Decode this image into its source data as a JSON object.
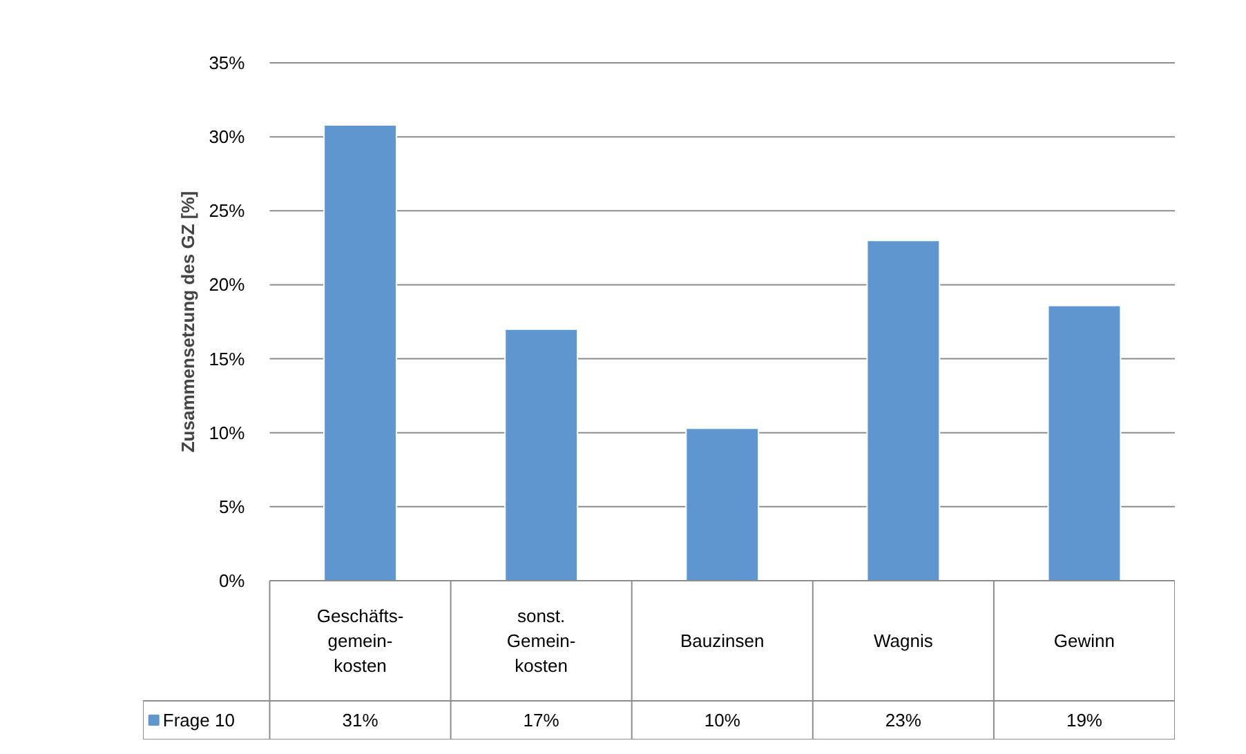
{
  "chart_data": {
    "type": "bar",
    "ylabel": "Zusammensetzung des GZ [%]",
    "categories": [
      "Geschäfts-\ngemein-\nkosten",
      "sonst.\nGemein-\nkosten",
      "Bauzinsen",
      "Wagnis",
      "Gewinn"
    ],
    "series": [
      {
        "name": "Frage 10",
        "color": "#5f96cf",
        "values": [
          30.8,
          17.0,
          10.3,
          23.0,
          18.6
        ],
        "value_labels": [
          "31%",
          "17%",
          "10%",
          "23%",
          "19%"
        ]
      }
    ],
    "ylim": [
      0,
      35
    ],
    "yticks": [
      {
        "value": 0,
        "label": "0%"
      },
      {
        "value": 5,
        "label": "5%"
      },
      {
        "value": 10,
        "label": "10%"
      },
      {
        "value": 15,
        "label": "15%"
      },
      {
        "value": 20,
        "label": "20%"
      },
      {
        "value": 25,
        "label": "25%"
      },
      {
        "value": 30,
        "label": "30%"
      },
      {
        "value": 35,
        "label": "35%"
      }
    ],
    "grid": "y",
    "legend": "bottom"
  }
}
